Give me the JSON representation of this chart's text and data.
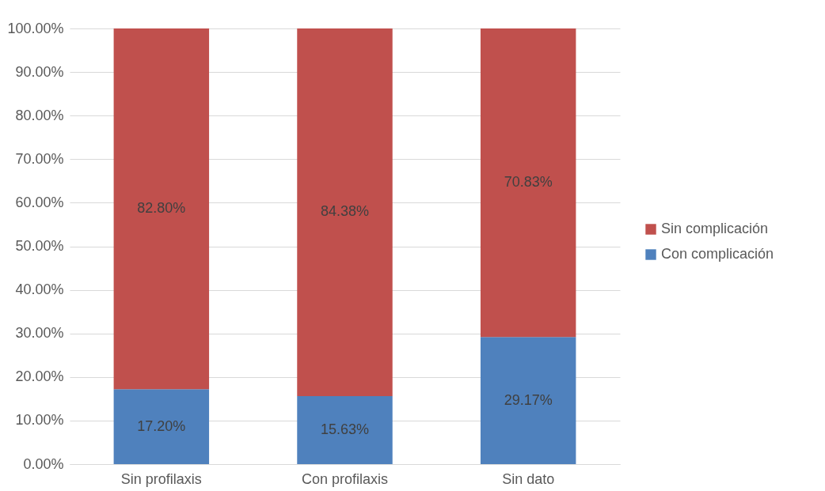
{
  "chart_data": {
    "type": "bar",
    "stacked": true,
    "categories": [
      "Sin profilaxis",
      "Con profilaxis",
      "Sin dato"
    ],
    "series": [
      {
        "name": "Con complicación",
        "color": "#4f81bd",
        "values": [
          17.2,
          15.63,
          29.17
        ],
        "value_labels": [
          "17.20%",
          "15.63%",
          "29.17%"
        ]
      },
      {
        "name": "Sin complicación",
        "color": "#c0504d",
        "values": [
          82.8,
          84.38,
          70.83
        ],
        "value_labels": [
          "82.80%",
          "84.38%",
          "70.83%"
        ]
      }
    ],
    "ylim": [
      0,
      100
    ],
    "yticks": [
      {
        "value": 0,
        "label": "0.00%"
      },
      {
        "value": 10,
        "label": "10.00%"
      },
      {
        "value": 20,
        "label": "20.00%"
      },
      {
        "value": 30,
        "label": "30.00%"
      },
      {
        "value": 40,
        "label": "40.00%"
      },
      {
        "value": 50,
        "label": "50.00%"
      },
      {
        "value": 60,
        "label": "60.00%"
      },
      {
        "value": 70,
        "label": "70.00%"
      },
      {
        "value": 80,
        "label": "80.00%"
      },
      {
        "value": 90,
        "label": "90.00%"
      },
      {
        "value": 100,
        "label": "100.00%"
      }
    ],
    "grid": "y",
    "legend": "right"
  }
}
